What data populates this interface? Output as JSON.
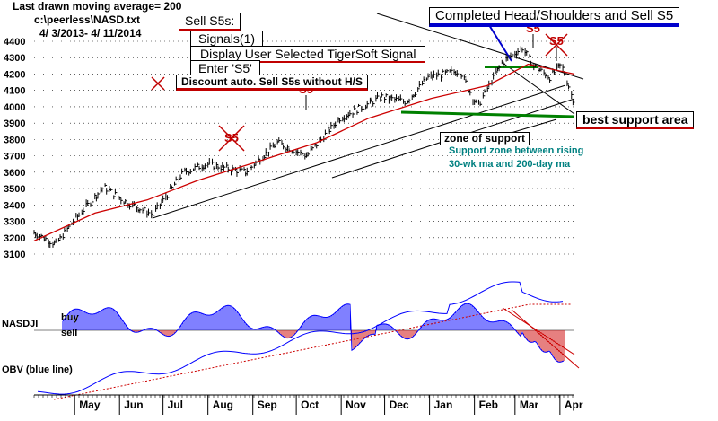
{
  "header": {
    "ma_label": "Last drawn moving average= 200",
    "file_label": "c:\\peerless\\NASD.txt",
    "date_range": "4/ 3/2013- 4/ 11/2014"
  },
  "menu": {
    "sell_s5s": "Sell S5s:",
    "signals": "Signals(1)",
    "display_signal": "Display User Selected TigerSoft Signal",
    "enter_s5": "Enter 'S5'",
    "discount": "Discount auto. Sell S5s without H/S"
  },
  "annotations": {
    "completed_hs": "Completed Head/Shoulders and Sell S5",
    "best_support": "best support area",
    "zone_of_support": "zone of support",
    "support_note_1": "Support zone between rising",
    "support_note_2": "30-wk ma and 200-day ma",
    "s5_marker": "S5"
  },
  "indicator_labels": {
    "nasdji": "NASDJI",
    "buy": "buy",
    "sell": "sell",
    "obv": "OBV (blue line)"
  },
  "colors": {
    "price": "#000000",
    "ma": "#cc0000",
    "indicator": "#0000ff",
    "support": "#008000",
    "note": "#008080"
  },
  "chart_data": {
    "type": "line",
    "y_axis_ticks": [
      3100,
      3200,
      3300,
      3400,
      3500,
      3600,
      3700,
      3800,
      3900,
      4000,
      4100,
      4200,
      4300,
      4400
    ],
    "ylim": [
      3100,
      4400
    ],
    "x_months": [
      "May",
      "Jun",
      "Jul",
      "Aug",
      "Sep",
      "Oct",
      "Nov",
      "Dec",
      "Jan",
      "Feb",
      "Mar",
      "Apr"
    ],
    "grid": "horizontal dotted",
    "series": [
      {
        "label_key": "price",
        "dates": [
          "2013-04-03",
          "2013-04-18",
          "2013-05-01",
          "2013-05-21",
          "2013-06-05",
          "2013-06-24",
          "2013-07-15",
          "2013-07-31",
          "2013-08-27",
          "2013-09-18",
          "2013-10-08",
          "2013-10-31",
          "2013-11-29",
          "2013-12-16",
          "2013-12-31",
          "2014-01-22",
          "2014-02-03",
          "2014-02-20",
          "2014-03-06",
          "2014-03-14",
          "2014-03-25",
          "2014-04-02",
          "2014-04-11"
        ],
        "values": [
          3230,
          3160,
          3310,
          3510,
          3420,
          3340,
          3600,
          3650,
          3600,
          3780,
          3700,
          3930,
          4060,
          4030,
          4180,
          4220,
          4000,
          4270,
          4360,
          4250,
          4180,
          4260,
          4020
        ]
      },
      {
        "label_key": "ma",
        "dates": [
          "2013-04-03",
          "2013-05-15",
          "2013-06-20",
          "2013-07-25",
          "2013-08-30",
          "2013-10-15",
          "2013-11-20",
          "2014-01-02",
          "2014-02-10",
          "2014-03-10",
          "2014-04-11"
        ],
        "values": [
          3180,
          3350,
          3430,
          3550,
          3650,
          3780,
          3930,
          4050,
          4130,
          4260,
          4200
        ]
      }
    ]
  }
}
